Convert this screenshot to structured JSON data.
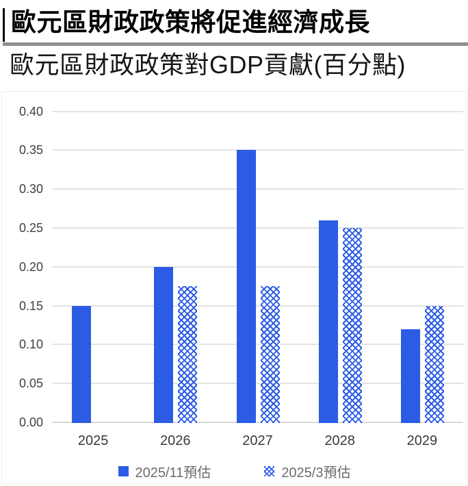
{
  "header": {
    "title": "歐元區財政政策將促進經濟成長",
    "subtitle": "歐元區財政政策對GDP貢獻(百分點)"
  },
  "colors": {
    "bar_solid": "#2c5ce4",
    "pattern_blue": "#2c5ce4",
    "gridline": "#e3e3e3",
    "baseline": "#d8d8d8",
    "y_label": "#404040",
    "x_label": "#3a3a3a",
    "legend_text": "#6b6b6b",
    "divider": "#8f8f8f",
    "panel_border": "#ededed"
  },
  "chart_data": {
    "type": "bar",
    "title": "歐元區財政政策對GDP貢獻(百分點)",
    "categories": [
      "2025",
      "2026",
      "2027",
      "2028",
      "2029"
    ],
    "series": [
      {
        "name": "2025/11預估",
        "style": "solid",
        "values": [
          0.15,
          0.2,
          0.35,
          0.26,
          0.12
        ]
      },
      {
        "name": "2025/3預估",
        "style": "pattern",
        "values": [
          null,
          0.175,
          0.175,
          0.25,
          0.15
        ]
      }
    ],
    "xlabel": "",
    "ylabel": "",
    "ylim": [
      0,
      0.4
    ],
    "yticks": [
      "0.00",
      "0.05",
      "0.10",
      "0.15",
      "0.20",
      "0.25",
      "0.30",
      "0.35",
      "0.40"
    ],
    "grid": true,
    "legend_position": "bottom"
  },
  "legend": {
    "items": [
      {
        "label": "2025/11預估",
        "marker": "solid-square"
      },
      {
        "label": "2025/3預估",
        "marker": "pattern-square"
      }
    ]
  }
}
